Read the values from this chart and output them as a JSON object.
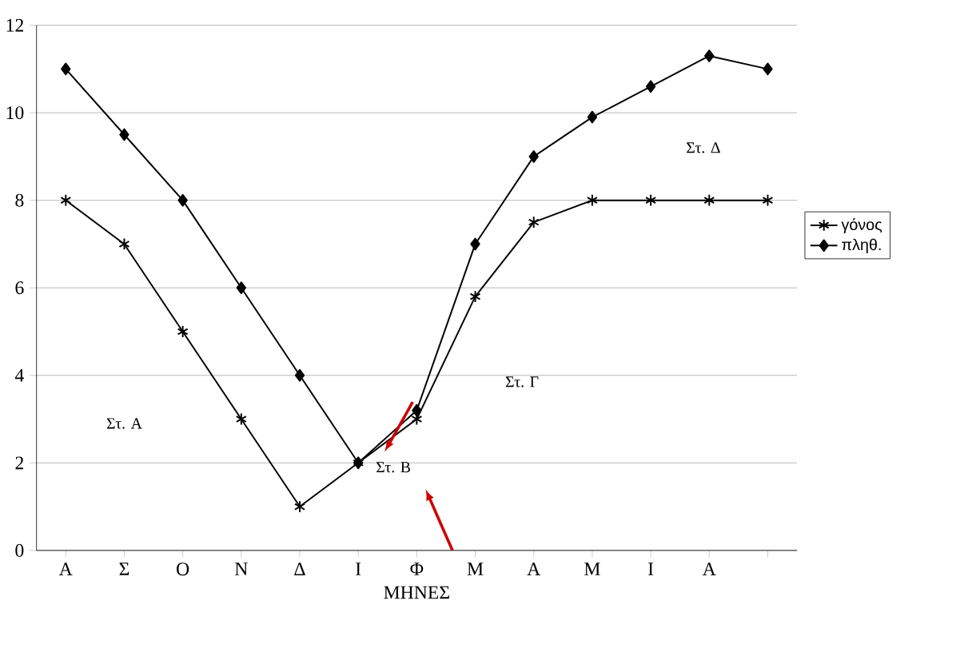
{
  "chart_data": {
    "type": "line",
    "xlabel": "ΜΗΝΕΣ",
    "categories": [
      "Α",
      "Σ",
      "Ο",
      "Ν",
      "Δ",
      "Ι",
      "Φ",
      "Μ",
      "Α",
      "Μ",
      "Ι",
      "Α",
      null
    ],
    "series": [
      {
        "name": "γόνος",
        "color": "#000000",
        "marker": "cross",
        "values": [
          8,
          7,
          5,
          3,
          1,
          2,
          3,
          5.8,
          7.5,
          8,
          8,
          8,
          8
        ]
      },
      {
        "name": "πληθ.",
        "color": "#000000",
        "marker": "diamond",
        "values": [
          11,
          9.5,
          8,
          6,
          4,
          2,
          3.2,
          7,
          9,
          9.9,
          10.6,
          11.3,
          11
        ]
      }
    ],
    "ylim": [
      0,
      12
    ],
    "yticks": [
      0,
      2,
      4,
      6,
      8,
      10,
      12
    ],
    "grid": "y",
    "legend": "right",
    "line_style": "solid",
    "annotations": [
      "Στ. Α",
      "Στ. Β",
      "Στ. Γ",
      "Στ. Δ"
    ]
  }
}
